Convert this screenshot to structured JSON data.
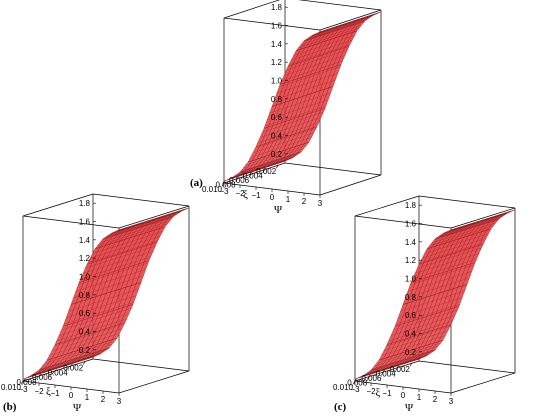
{
  "chart_data": [
    {
      "type": "surface",
      "panel_label": "(a)",
      "xlabel": "ξ",
      "ylabel": "Ψ",
      "x_ticks": [
        "0.010",
        "0.008",
        "0.006",
        "0.004",
        "0.002"
      ],
      "y_ticks": [
        "-3",
        "-2",
        "-1",
        "0",
        "1",
        "2",
        "3"
      ],
      "z_ticks": [
        "0.2",
        "0.4",
        "0.6",
        "0.8",
        "1.0",
        "1.2",
        "1.4",
        "1.6",
        "1.8"
      ],
      "xlim": [
        0.001,
        0.01
      ],
      "ylim": [
        -3,
        3
      ],
      "zlim": [
        0.1,
        1.9
      ],
      "surface": {
        "psi": [
          -3,
          -2.5,
          -2,
          -1.5,
          -1,
          -0.5,
          0,
          0.5,
          1,
          1.5,
          2,
          2.5,
          3
        ],
        "z": [
          0.12,
          0.17,
          0.24,
          0.36,
          0.54,
          0.75,
          1.0,
          1.25,
          1.46,
          1.64,
          1.76,
          1.83,
          1.88
        ]
      },
      "color": "#e8474b"
    },
    {
      "type": "surface",
      "panel_label": "(b)",
      "xlabel": "ξ",
      "ylabel": "Ψ",
      "x_ticks": [
        "0.010",
        "0.008",
        "0.006",
        "0.004",
        "0.002"
      ],
      "y_ticks": [
        "-3",
        "-2",
        "-1",
        "0",
        "1",
        "2",
        "3"
      ],
      "z_ticks": [
        "0.2",
        "0.4",
        "0.6",
        "0.8",
        "1.0",
        "1.2",
        "1.4",
        "1.6",
        "1.8"
      ],
      "xlim": [
        0.001,
        0.01
      ],
      "ylim": [
        -3,
        3
      ],
      "zlim": [
        0.1,
        1.9
      ],
      "surface": {
        "psi": [
          -3,
          -2.5,
          -2,
          -1.5,
          -1,
          -0.5,
          0,
          0.5,
          1,
          1.5,
          2,
          2.5,
          3
        ],
        "z": [
          0.12,
          0.17,
          0.24,
          0.36,
          0.54,
          0.75,
          1.0,
          1.25,
          1.46,
          1.64,
          1.76,
          1.83,
          1.88
        ]
      },
      "color": "#e8474b"
    },
    {
      "type": "surface",
      "panel_label": "(c)",
      "xlabel": "ξ",
      "ylabel": "Ψ",
      "x_ticks": [
        "0.010",
        "0.008",
        "0.006",
        "0.004",
        "0.002"
      ],
      "y_ticks": [
        "-3",
        "-2",
        "-1",
        "0",
        "1",
        "2",
        "3"
      ],
      "z_ticks": [
        "0.2",
        "0.4",
        "0.6",
        "0.8",
        "1.0",
        "1.2",
        "1.4",
        "1.6",
        "1.8"
      ],
      "xlim": [
        0.001,
        0.01
      ],
      "ylim": [
        -3,
        3
      ],
      "zlim": [
        0.1,
        1.9
      ],
      "surface": {
        "psi": [
          -3,
          -2.5,
          -2,
          -1.5,
          -1,
          -0.5,
          0,
          0.5,
          1,
          1.5,
          2,
          2.5,
          3
        ],
        "z": [
          0.12,
          0.17,
          0.24,
          0.36,
          0.54,
          0.75,
          1.0,
          1.25,
          1.46,
          1.64,
          1.76,
          1.83,
          1.88
        ]
      },
      "color": "#e8474b"
    }
  ]
}
